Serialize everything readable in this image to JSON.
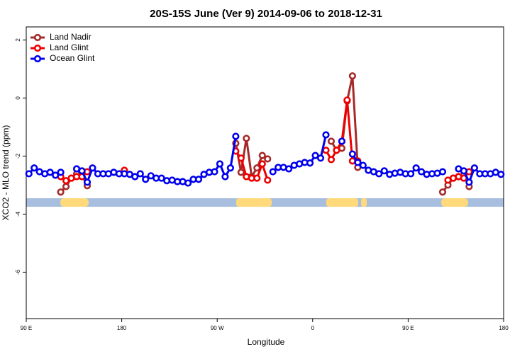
{
  "chart_data": {
    "type": "line",
    "title": "20S-15S June (Ver 9)   2014-09-06 to 2018-12-31",
    "x_label": "Longitude",
    "y_label": "XCO2 - MLO trend (ppm)",
    "xlim": [
      90,
      540
    ],
    "ylim": [
      -7.6,
      2.45
    ],
    "xticks": [
      {
        "value": 90,
        "label": "90 E"
      },
      {
        "value": 180,
        "label": "180"
      },
      {
        "value": 270,
        "label": "90 W"
      },
      {
        "value": 360,
        "label": "0"
      },
      {
        "value": 450,
        "label": "90 E"
      },
      {
        "value": 540,
        "label": "180"
      }
    ],
    "yticks": [
      2,
      0,
      -2,
      -4,
      -6
    ],
    "legend": "top-left",
    "x": [
      92.5,
      97.5,
      102.5,
      107.5,
      112.5,
      117.5,
      122.5,
      127.5,
      132.5,
      137.5,
      142.5,
      147.5,
      152.5,
      157.5,
      162.5,
      167.5,
      172.5,
      177.5,
      182.5,
      187.5,
      192.5,
      197.5,
      202.5,
      207.5,
      212.5,
      217.5,
      222.5,
      227.5,
      232.5,
      237.5,
      242.5,
      247.5,
      252.5,
      257.5,
      262.5,
      267.5,
      272.5,
      277.5,
      282.5,
      287.5,
      292.5,
      297.5,
      302.5,
      307.5,
      312.5,
      317.5,
      322.5,
      327.5,
      332.5,
      337.5,
      342.5,
      347.5,
      352.5,
      357.5,
      362.5,
      367.5,
      372.5,
      377.5,
      382.5,
      387.5,
      392.5,
      397.5,
      402.5,
      407.5,
      412.5,
      417.5,
      422.5,
      427.5,
      432.5,
      437.5,
      442.5,
      447.5,
      452.5,
      457.5,
      462.5,
      467.5,
      472.5,
      477.5,
      482.5,
      487.5,
      492.5,
      497.5,
      502.5,
      507.5,
      512.5,
      517.5,
      522.5,
      527.5,
      532.5,
      537.5
    ],
    "series": [
      {
        "name": "Land Nadir",
        "color": "#a52a2a",
        "values": [
          null,
          null,
          null,
          null,
          null,
          null,
          -3.24,
          -3.05,
          -2.76,
          -2.61,
          -2.66,
          -3.02,
          null,
          null,
          null,
          null,
          null,
          null,
          null,
          null,
          null,
          null,
          null,
          null,
          null,
          null,
          null,
          null,
          null,
          null,
          null,
          null,
          null,
          null,
          null,
          null,
          null,
          null,
          null,
          -1.56,
          -2.56,
          -1.39,
          -2.71,
          -2.41,
          -1.98,
          -2.1,
          null,
          null,
          null,
          null,
          null,
          null,
          null,
          null,
          null,
          null,
          null,
          -1.49,
          -1.8,
          -1.73,
          -0.1,
          0.76,
          -2.39,
          null,
          null,
          null,
          null,
          null,
          null,
          null,
          null,
          null,
          null,
          null,
          null,
          null,
          null,
          null,
          -3.24,
          -3.0,
          -2.76,
          -2.71,
          -2.66,
          -3.05,
          null,
          null,
          null,
          null,
          null,
          null
        ]
      },
      {
        "name": "Land Glint",
        "color": "#ee0000",
        "values": [
          null,
          null,
          null,
          null,
          null,
          null,
          -2.71,
          -2.85,
          -2.76,
          -2.71,
          -2.71,
          -2.54,
          null,
          null,
          null,
          null,
          null,
          null,
          -2.49,
          null,
          null,
          null,
          null,
          null,
          null,
          null,
          null,
          null,
          null,
          null,
          null,
          null,
          null,
          null,
          null,
          null,
          null,
          null,
          null,
          -1.83,
          -2.07,
          -2.71,
          -2.76,
          -2.76,
          -2.27,
          -2.83,
          null,
          null,
          null,
          null,
          null,
          null,
          null,
          null,
          null,
          null,
          -1.8,
          -2.12,
          -1.8,
          -1.49,
          -0.07,
          -2.17,
          -2.17,
          null,
          null,
          null,
          null,
          null,
          null,
          null,
          null,
          null,
          null,
          null,
          null,
          null,
          null,
          null,
          null,
          -2.83,
          -2.76,
          -2.71,
          -2.76,
          -2.54,
          null,
          null,
          null,
          null,
          null,
          null
        ]
      },
      {
        "name": "Ocean Glint",
        "color": "#0000ee",
        "values": [
          -2.61,
          -2.41,
          -2.54,
          -2.61,
          -2.56,
          -2.66,
          -2.56,
          null,
          null,
          -2.44,
          -2.51,
          -2.9,
          -2.41,
          -2.61,
          -2.61,
          -2.61,
          -2.56,
          -2.61,
          -2.61,
          -2.63,
          -2.71,
          -2.61,
          -2.8,
          -2.68,
          -2.76,
          -2.76,
          -2.85,
          -2.83,
          -2.88,
          -2.88,
          -2.93,
          -2.8,
          -2.8,
          -2.63,
          -2.56,
          -2.54,
          -2.27,
          -2.71,
          -2.41,
          -1.32,
          null,
          null,
          null,
          null,
          null,
          null,
          -2.54,
          -2.39,
          -2.39,
          -2.44,
          -2.32,
          -2.27,
          -2.22,
          -2.24,
          -1.98,
          -2.07,
          -1.27,
          null,
          null,
          -1.49,
          null,
          -1.93,
          -2.22,
          -2.32,
          -2.49,
          -2.54,
          -2.61,
          -2.51,
          -2.63,
          -2.59,
          -2.56,
          -2.61,
          -2.61,
          -2.41,
          -2.54,
          -2.63,
          -2.61,
          -2.59,
          -2.54,
          null,
          null,
          -2.44,
          -2.51,
          -2.9,
          -2.41,
          -2.61,
          -2.61,
          -2.61,
          -2.56,
          -2.63
        ]
      }
    ]
  }
}
